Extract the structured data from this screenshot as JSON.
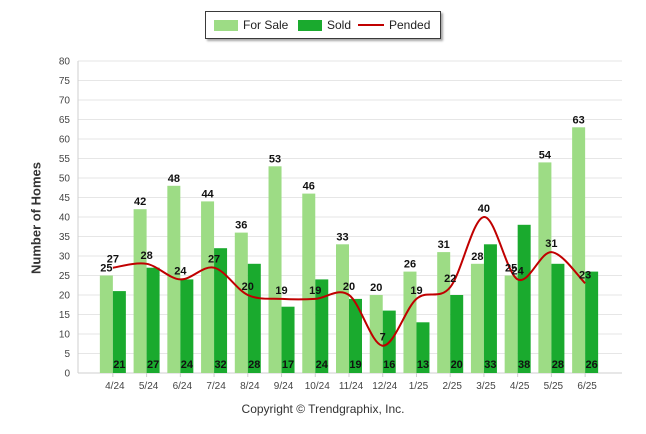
{
  "chart_data": {
    "type": "bar",
    "categories": [
      "4/24",
      "5/24",
      "6/24",
      "7/24",
      "8/24",
      "9/24",
      "10/24",
      "11/24",
      "12/24",
      "1/25",
      "2/25",
      "3/25",
      "4/25",
      "5/25",
      "6/25"
    ],
    "series": [
      {
        "name": "For Sale",
        "type": "bar",
        "color": "#9ddc85",
        "values": [
          25,
          42,
          48,
          44,
          36,
          53,
          46,
          33,
          20,
          26,
          31,
          28,
          25,
          54,
          63
        ]
      },
      {
        "name": "Sold",
        "type": "bar",
        "color": "#1aaa2e",
        "values": [
          21,
          27,
          24,
          32,
          28,
          17,
          24,
          19,
          16,
          13,
          20,
          33,
          38,
          28,
          26
        ]
      },
      {
        "name": "Pended",
        "type": "line",
        "color": "#c00000",
        "values": [
          27,
          28,
          24,
          27,
          20,
          19,
          19,
          20,
          7,
          19,
          22,
          40,
          24,
          31,
          23
        ]
      }
    ],
    "xlabel": "",
    "ylabel": "Number of Homes",
    "ylim": [
      0,
      80
    ],
    "yticks": [
      0,
      5,
      10,
      15,
      20,
      25,
      30,
      35,
      40,
      45,
      50,
      55,
      60,
      65,
      70,
      75,
      80
    ],
    "grid": true,
    "legend_position": "top-center"
  },
  "legend": {
    "for_sale": "For Sale",
    "sold": "Sold",
    "pended": "Pended"
  },
  "footer": {
    "copyright": "Copyright © Trendgraphix, Inc."
  }
}
